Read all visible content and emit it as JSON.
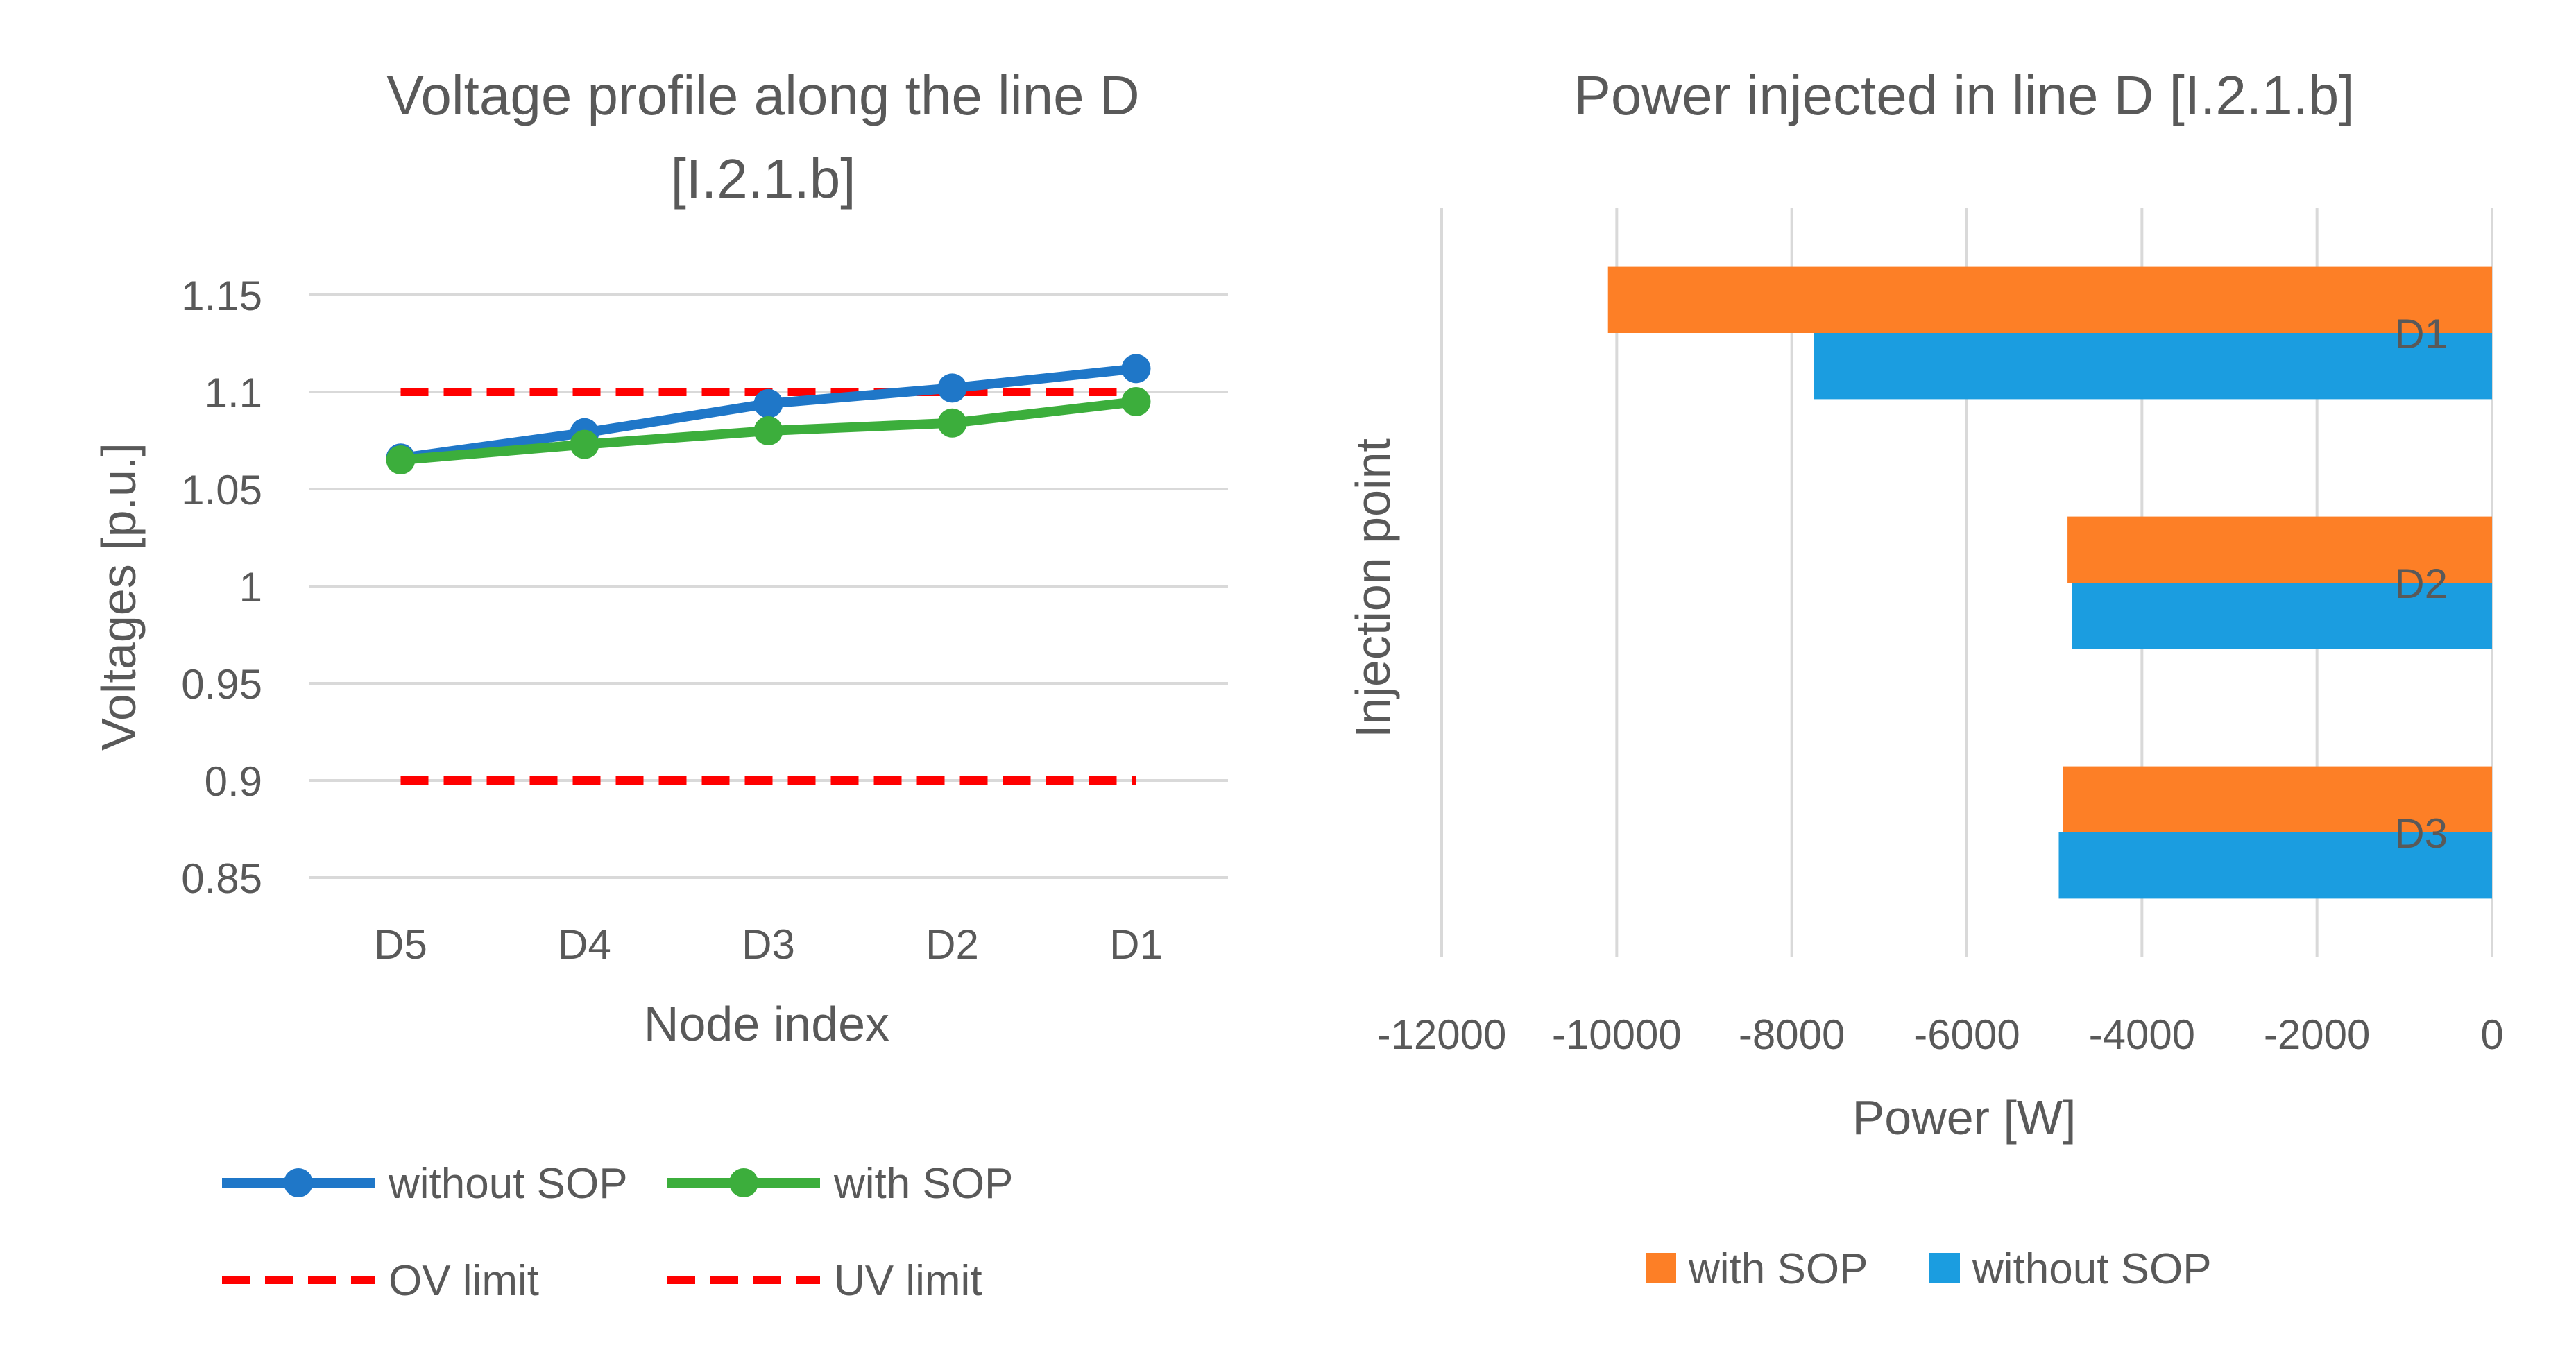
{
  "chart_data": [
    {
      "type": "line",
      "title_line1": "Voltage profile along the line D",
      "title_line2": "[I.2.1.b]",
      "xlabel": "Node index",
      "ylabel": "Voltages [p.u.]",
      "categories": [
        "D5",
        "D4",
        "D3",
        "D2",
        "D1"
      ],
      "ylim": [
        0.85,
        1.15
      ],
      "yticks": [
        "1.15",
        "1.1",
        "1.05",
        "1",
        "0.95",
        "0.9",
        "0.85"
      ],
      "grid": true,
      "legend_position": "bottom",
      "series": [
        {
          "name": "without SOP",
          "values": [
            1.066,
            1.079,
            1.094,
            1.102,
            1.112
          ],
          "color": "#1f77c8",
          "style": "solid-marker"
        },
        {
          "name": "with SOP",
          "values": [
            1.065,
            1.073,
            1.08,
            1.084,
            1.095
          ],
          "color": "#3cae3c",
          "style": "solid-marker"
        },
        {
          "name": "OV limit",
          "values": [
            1.1,
            1.1,
            1.1,
            1.1,
            1.1
          ],
          "color": "#ff0000",
          "style": "dashed"
        },
        {
          "name": "UV limit",
          "values": [
            0.9,
            0.9,
            0.9,
            0.9,
            0.9
          ],
          "color": "#ff0000",
          "style": "dashed"
        }
      ]
    },
    {
      "type": "bar",
      "orientation": "horizontal",
      "title": "Power injected in line D [I.2.1.b]",
      "xlabel": "Power [W]",
      "ylabel": "Injection point",
      "categories": [
        "D1",
        "D2",
        "D3"
      ],
      "xlim": [
        -12000,
        0
      ],
      "xticks": [
        "-12000",
        "-10000",
        "-8000",
        "-6000",
        "-4000",
        "-2000",
        "0"
      ],
      "grid": true,
      "legend_position": "bottom",
      "series": [
        {
          "name": "with SOP",
          "values": [
            -10100,
            -4850,
            -4900
          ],
          "color": "#fd7f26"
        },
        {
          "name": "without SOP",
          "values": [
            -7750,
            -4800,
            -4950
          ],
          "color": "#1b9de0"
        }
      ]
    }
  ]
}
